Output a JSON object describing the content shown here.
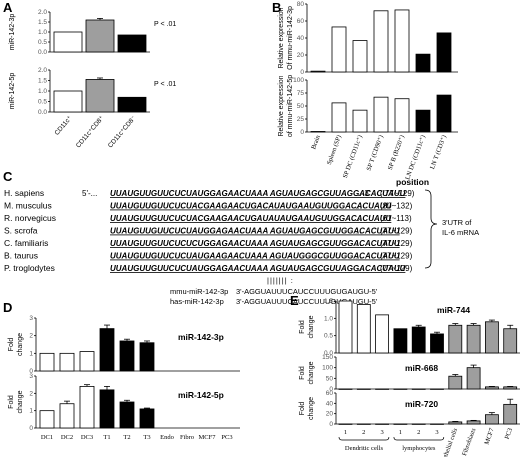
{
  "panels": {
    "A": {
      "letter": "A",
      "categories": [
        "CD11c⁺",
        "CD11c⁺CD8⁺",
        "CD11c⁺CD8⁻"
      ],
      "subplots": [
        {
          "ylabel": "miR-142-3p",
          "ticks": [
            "0.0",
            "0.5",
            "1.0",
            "1.5",
            "2.0"
          ],
          "values": [
            1.0,
            1.6,
            0.85
          ],
          "errors": [
            0,
            0.08,
            0
          ],
          "annotation": "P < .01",
          "colors": [
            "#ffffff",
            "#9e9e9e",
            "#000000"
          ]
        },
        {
          "ylabel": "miR-142-5p",
          "ticks": [
            "0.0",
            "0.5",
            "1.0",
            "1.5",
            "2.0"
          ],
          "values": [
            1.0,
            1.55,
            0.7
          ],
          "errors": [
            0,
            0.07,
            0
          ],
          "annotation": "P < .01",
          "colors": [
            "#ffffff",
            "#9e9e9e",
            "#000000"
          ]
        }
      ]
    },
    "B": {
      "letter": "B",
      "categories": [
        "Brain",
        "Spleen (SP)",
        "SP DC (CD11c⁺)",
        "SP T (CD90⁺)",
        "SP B (B220⁺)",
        "LN DC (CD11c⁺)",
        "LN T (CD3⁺)"
      ],
      "subplots": [
        {
          "ylabel_lines": [
            "Relative expression",
            "Of mmu-miR-142-3p"
          ],
          "ticks": [
            "0",
            "20",
            "40",
            "60",
            "80"
          ],
          "values": [
            1,
            53,
            37,
            72,
            73,
            21,
            46
          ],
          "colors": [
            "#ffffff",
            "#ffffff",
            "#ffffff",
            "#ffffff",
            "#ffffff",
            "#000000",
            "#000000"
          ]
        },
        {
          "ylabel_lines": [
            "Relative expression",
            "of mmu-miR-142-5p"
          ],
          "ticks": [
            "0",
            "25",
            "50",
            "75",
            "100"
          ],
          "values": [
            1,
            56,
            42,
            67,
            64,
            42,
            71
          ],
          "colors": [
            "#ffffff",
            "#ffffff",
            "#ffffff",
            "#ffffff",
            "#ffffff",
            "#000000",
            "#000000"
          ]
        }
      ]
    },
    "C": {
      "letter": "C",
      "position_header": "position",
      "rows": [
        {
          "species": "H. sapiens",
          "prefix": "5'-...",
          "sequence": "UUAUGUUGUUCUCUAUGGAGAACUAAA AGUAUGAGCGUUAGGACACUAUU",
          "suffix": "...-3'",
          "position": "( 77~129)"
        },
        {
          "species": "M. musculus",
          "prefix": "",
          "sequence": "UUAUGUUGUUCUCUACGAAGAACUGACAUAUGAAUGUUGGACACUAUU",
          "suffix": "...",
          "position": "(80~132)"
        },
        {
          "species": "R. norvegicus",
          "prefix": "",
          "sequence": "UUAUGUUGUUCUCUACGAAGAACUGAUAUAUGAAUGUUGGACACUAUU",
          "suffix": "...",
          "position": "(61~113)"
        },
        {
          "species": "S. scrofa",
          "prefix": "",
          "sequence": "UUAUGUUGUUCUCUAUGGAGAACUAAA AGUAUGAGCGUUGGACACUAUU",
          "suffix": "...",
          "position": "(77~129)"
        },
        {
          "species": "C. familiaris",
          "prefix": "",
          "sequence": "UUAUGUUGUUCUCUCUGGAGAACUAAA AGUAUGAGCGUUGGACACUAUU",
          "suffix": "...",
          "position": "(77~129)"
        },
        {
          "species": "B. taurus",
          "prefix": "",
          "sequence": "UUAUGUUGUUCUCUAUGAAGAACUAAA AGUAUGGGCGUUGGACACUAUU",
          "suffix": "...",
          "position": "(77~129)"
        },
        {
          "species": "P. troglodytes",
          "prefix": "",
          "sequence": "UUAUGUUGUUCUCUAUGGAGAACUAAA AGUAUGAGCGUUAGGACACUAUU",
          "suffix": "...",
          "position": "(77~129)"
        }
      ],
      "utr_label_lines": [
        "3'UTR of",
        "IL-6 mRNA"
      ],
      "pairing": "|||||||  :",
      "mirs": [
        {
          "name": "mmu-miR-142-3p",
          "sequence": "3'-AGGUAUUUCAUCCUUUGUGAUGU-5'"
        },
        {
          "name": "has-miR-142-3p",
          "sequence": "3'-AGGUAUUUCAUCCUUUGUGAUGU-5'"
        }
      ]
    },
    "D": {
      "letter": "D",
      "ylabel_lines": [
        "Fold",
        "change"
      ],
      "categories": [
        "DC1",
        "DC2",
        "DC3",
        "T1",
        "T2",
        "T3",
        "Endo",
        "Fibro",
        "MCF7",
        "PC3"
      ],
      "subplots": [
        {
          "name": "miR-142-3p",
          "ticks": [
            "0",
            "1",
            "2",
            "3"
          ],
          "values": [
            1.0,
            1.0,
            1.1,
            2.4,
            1.7,
            1.6,
            0,
            0,
            0,
            0
          ],
          "errors": [
            0,
            0,
            0,
            0.2,
            0.1,
            0.1,
            0,
            0,
            0,
            0
          ]
        },
        {
          "name": "miR-142-5p",
          "ticks": [
            "0",
            "1",
            "2",
            "3"
          ],
          "values": [
            1.0,
            1.4,
            2.4,
            2.2,
            1.5,
            1.1,
            0,
            0,
            0,
            0
          ],
          "errors": [
            0,
            0.15,
            0.1,
            0.2,
            0.1,
            0.05,
            0,
            0,
            0,
            0
          ]
        }
      ],
      "colors": [
        "#ffffff",
        "#ffffff",
        "#ffffff",
        "#000000",
        "#000000",
        "#000000",
        "#ffffff",
        "#ffffff",
        "#ffffff",
        "#ffffff"
      ]
    },
    "E": {
      "letter": "E",
      "ylabel_lines": [
        "Fold",
        "change"
      ],
      "categories": [
        "1",
        "2",
        "3",
        "1",
        "2",
        "3",
        "Endothelial cells",
        "Fibroblasts",
        "MCF7",
        "PC3"
      ],
      "group_labels": [
        "Dendritic cells",
        "lymphocytes"
      ],
      "colors": [
        "#ffffff",
        "#ffffff",
        "#ffffff",
        "#000000",
        "#000000",
        "#000000",
        "#9e9e9e",
        "#9e9e9e",
        "#9e9e9e",
        "#9e9e9e"
      ],
      "subplots": [
        {
          "name": "miR-744",
          "ticks": [
            "0.0",
            "0.5",
            "1.0",
            "1.5"
          ],
          "values": [
            1.5,
            1.4,
            1.1,
            0.7,
            0.75,
            0.55,
            0.8,
            0.8,
            0.9,
            0.7
          ],
          "errors": [
            0,
            0,
            0,
            0,
            0.05,
            0.05,
            0.05,
            0.05,
            0.05,
            0.1
          ]
        },
        {
          "name": "miR-668",
          "ticks": [
            "0",
            "50",
            "100",
            "150"
          ],
          "values": [
            0,
            0,
            0,
            0,
            0,
            0,
            60,
            100,
            10,
            10
          ],
          "errors": [
            0,
            0,
            0,
            0,
            0,
            0,
            8,
            12,
            2,
            2
          ]
        },
        {
          "name": "miR-720",
          "ticks": [
            "0",
            "20",
            "40",
            "60"
          ],
          "values": [
            0,
            0,
            0,
            0,
            0,
            0,
            4,
            6,
            18,
            38
          ],
          "errors": [
            0,
            0,
            0,
            0,
            0,
            0,
            1,
            1,
            4,
            10
          ]
        }
      ]
    }
  }
}
